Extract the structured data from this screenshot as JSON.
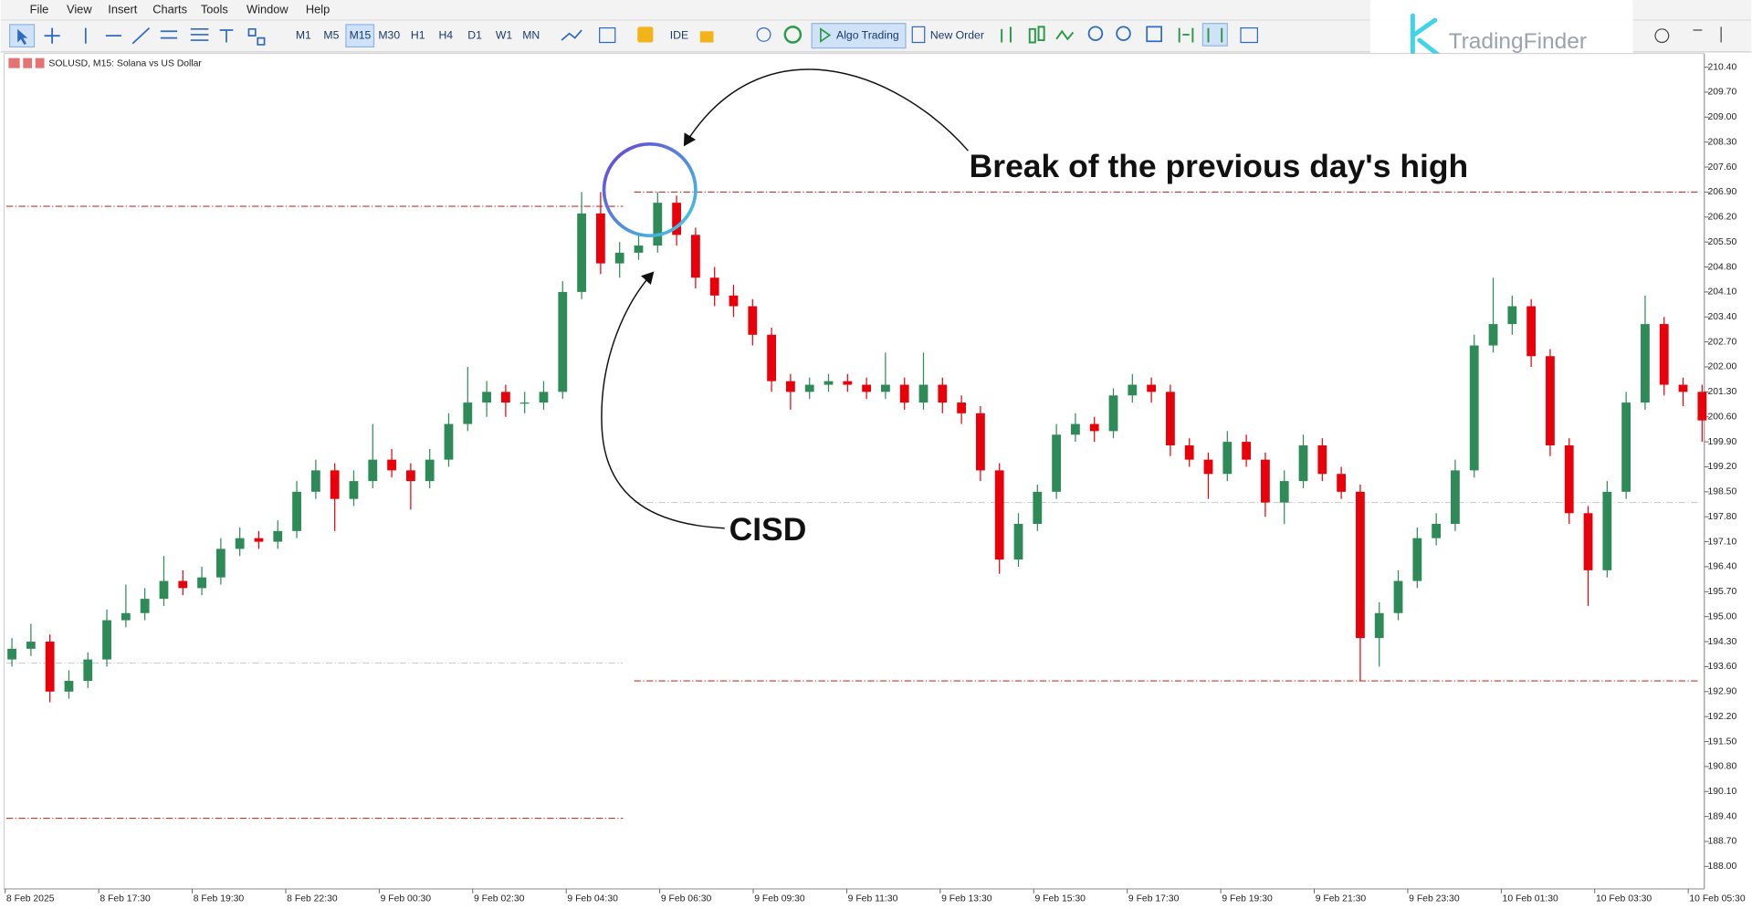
{
  "menu": [
    "File",
    "View",
    "Insert",
    "Charts",
    "Tools",
    "Window",
    "Help"
  ],
  "toolbar": {
    "timeframes": [
      "M1",
      "M5",
      "M15",
      "M30",
      "H1",
      "H4",
      "D1",
      "W1",
      "MN"
    ],
    "active_timeframe": 2,
    "ide": "IDE",
    "algo_trading": "Algo Trading",
    "new_order": "New Order"
  },
  "logo": "TradingFinder",
  "annotations": [
    "Break of the previous day's high",
    "CISD"
  ],
  "chart_data": {
    "type": "candlestick",
    "title": "SOLUSD, M15:  Solana vs US Dollar",
    "up_color": "#2e8b57",
    "down_color": "#e8000b",
    "ylim": [
      187.37,
      210.78
    ],
    "yticks": [
      {
        "value": 210.4,
        "label": "210.40"
      },
      {
        "value": 209.7,
        "label": "209.70"
      },
      {
        "value": 209,
        "label": "209.00"
      },
      {
        "value": 208.3,
        "label": "208.30"
      },
      {
        "value": 207.6,
        "label": "207.60"
      },
      {
        "value": 206.9,
        "label": "206.90"
      },
      {
        "value": 206.2,
        "label": "206.20"
      },
      {
        "value": 205.5,
        "label": "205.50"
      },
      {
        "value": 204.8,
        "label": "204.80"
      },
      {
        "value": 204.1,
        "label": "204.10"
      },
      {
        "value": 203.4,
        "label": "203.40"
      },
      {
        "value": 202.7,
        "label": "202.70"
      },
      {
        "value": 202,
        "label": "202.00"
      },
      {
        "value": 201.3,
        "label": "201.30"
      },
      {
        "value": 200.6,
        "label": "200.60"
      },
      {
        "value": 199.9,
        "label": "199.90"
      },
      {
        "value": 199.2,
        "label": "199.20"
      },
      {
        "value": 198.5,
        "label": "198.50"
      },
      {
        "value": 197.8,
        "label": "197.80"
      },
      {
        "value": 197.1,
        "label": "197.10"
      },
      {
        "value": 196.4,
        "label": "196.40"
      },
      {
        "value": 195.7,
        "label": "195.70"
      },
      {
        "value": 195,
        "label": "195.00"
      },
      {
        "value": 194.3,
        "label": "194.30"
      },
      {
        "value": 193.6,
        "label": "193.60"
      },
      {
        "value": 192.9,
        "label": "192.90"
      },
      {
        "value": 192.2,
        "label": "192.20"
      },
      {
        "value": 191.5,
        "label": "191.50"
      },
      {
        "value": 190.8,
        "label": "190.80"
      },
      {
        "value": 190.1,
        "label": "190.10"
      },
      {
        "value": 189.4,
        "label": "189.40"
      },
      {
        "value": 188.7,
        "label": "188.70"
      },
      {
        "value": 188,
        "label": "188.00"
      }
    ],
    "x_labels": [
      "8 Feb 2025",
      "8 Feb 17:30",
      "8 Feb 19:30",
      "8 Feb 22:30",
      "9 Feb 00:30",
      "9 Feb 02:30",
      "9 Feb 04:30",
      "9 Feb 06:30",
      "9 Feb 09:30",
      "9 Feb 11:30",
      "9 Feb 13:30",
      "9 Feb 15:30",
      "9 Feb 17:30",
      "9 Feb 19:30",
      "9 Feb 21:30",
      "9 Feb 23:30",
      "10 Feb 01:30",
      "10 Feb 03:30",
      "10 Feb 05:30"
    ],
    "levels": [
      {
        "value": 206.5,
        "side": "left",
        "color": "#c0392b"
      },
      {
        "value": 206.9,
        "side": "right",
        "color": "#c0392b"
      },
      {
        "value": 193.2,
        "side": "right",
        "color": "#c0392b"
      },
      {
        "value": 189.35,
        "side": "left",
        "color": "#c0392b"
      },
      {
        "value": 193.7,
        "side": "left",
        "color": "#cccccc"
      },
      {
        "value": 198.2,
        "side": "right",
        "color": "#cccccc"
      }
    ],
    "ohlc": [
      [
        193.8,
        194.4,
        193.6,
        194.1
      ],
      [
        194.1,
        194.8,
        193.9,
        194.3
      ],
      [
        194.3,
        194.5,
        192.6,
        192.9
      ],
      [
        192.9,
        193.5,
        192.7,
        193.2
      ],
      [
        193.2,
        194.0,
        193.0,
        193.8
      ],
      [
        193.8,
        195.2,
        193.6,
        194.9
      ],
      [
        194.9,
        195.9,
        194.7,
        195.1
      ],
      [
        195.1,
        195.8,
        194.9,
        195.5
      ],
      [
        195.5,
        196.7,
        195.3,
        196.0
      ],
      [
        196.0,
        196.3,
        195.6,
        195.8
      ],
      [
        195.8,
        196.4,
        195.6,
        196.1
      ],
      [
        196.1,
        197.2,
        195.9,
        196.9
      ],
      [
        196.9,
        197.5,
        196.7,
        197.2
      ],
      [
        197.2,
        197.4,
        196.9,
        197.1
      ],
      [
        197.1,
        197.7,
        196.9,
        197.4
      ],
      [
        197.4,
        198.8,
        197.2,
        198.5
      ],
      [
        198.5,
        199.4,
        198.3,
        199.1
      ],
      [
        199.1,
        199.3,
        197.4,
        198.3
      ],
      [
        198.3,
        199.1,
        198.1,
        198.8
      ],
      [
        198.8,
        200.4,
        198.6,
        199.4
      ],
      [
        199.4,
        199.7,
        198.9,
        199.1
      ],
      [
        199.1,
        199.3,
        198.0,
        198.8
      ],
      [
        198.8,
        199.7,
        198.6,
        199.4
      ],
      [
        199.4,
        200.7,
        199.2,
        200.4
      ],
      [
        200.4,
        202.0,
        200.2,
        201.0
      ],
      [
        201.0,
        201.6,
        200.6,
        201.3
      ],
      [
        201.3,
        201.5,
        200.6,
        201.0
      ],
      [
        201.0,
        201.3,
        200.7,
        201.0
      ],
      [
        201.0,
        201.6,
        200.8,
        201.3
      ],
      [
        201.3,
        204.4,
        201.1,
        204.1
      ],
      [
        204.1,
        206.9,
        203.9,
        206.3
      ],
      [
        206.3,
        206.9,
        204.6,
        204.9
      ],
      [
        204.9,
        205.5,
        204.5,
        205.2
      ],
      [
        205.2,
        205.7,
        205.0,
        205.4
      ],
      [
        205.4,
        206.9,
        205.2,
        206.6
      ],
      [
        206.6,
        206.8,
        205.4,
        205.7
      ],
      [
        205.7,
        205.9,
        204.2,
        204.5
      ],
      [
        204.5,
        204.8,
        203.7,
        204.0
      ],
      [
        204.0,
        204.3,
        203.4,
        203.7
      ],
      [
        203.7,
        203.9,
        202.6,
        202.9
      ],
      [
        202.9,
        203.1,
        201.3,
        201.6
      ],
      [
        201.6,
        201.8,
        200.8,
        201.3
      ],
      [
        201.3,
        201.7,
        201.1,
        201.5
      ],
      [
        201.5,
        201.8,
        201.3,
        201.6
      ],
      [
        201.6,
        201.8,
        201.3,
        201.5
      ],
      [
        201.5,
        201.7,
        201.1,
        201.3
      ],
      [
        201.3,
        202.4,
        201.1,
        201.5
      ],
      [
        201.5,
        201.7,
        200.8,
        201.0
      ],
      [
        201.0,
        202.4,
        200.8,
        201.5
      ],
      [
        201.5,
        201.7,
        200.7,
        201.0
      ],
      [
        201.0,
        201.2,
        200.4,
        200.7
      ],
      [
        200.7,
        200.9,
        198.8,
        199.1
      ],
      [
        199.1,
        199.3,
        196.2,
        196.6
      ],
      [
        196.6,
        197.9,
        196.4,
        197.6
      ],
      [
        197.6,
        198.7,
        197.4,
        198.5
      ],
      [
        198.5,
        200.4,
        198.3,
        200.1
      ],
      [
        200.1,
        200.7,
        199.9,
        200.4
      ],
      [
        200.4,
        200.6,
        199.9,
        200.2
      ],
      [
        200.2,
        201.4,
        200.0,
        201.2
      ],
      [
        201.2,
        201.8,
        201.0,
        201.5
      ],
      [
        201.5,
        201.7,
        201.0,
        201.3
      ],
      [
        201.3,
        201.5,
        199.5,
        199.8
      ],
      [
        199.8,
        200.0,
        199.2,
        199.4
      ],
      [
        199.4,
        199.6,
        198.3,
        199.0
      ],
      [
        199.0,
        200.2,
        198.8,
        199.9
      ],
      [
        199.9,
        200.1,
        199.2,
        199.4
      ],
      [
        199.4,
        199.6,
        197.8,
        198.2
      ],
      [
        198.2,
        199.1,
        197.6,
        198.8
      ],
      [
        198.8,
        200.1,
        198.6,
        199.8
      ],
      [
        199.8,
        200.0,
        198.8,
        199.0
      ],
      [
        199.0,
        199.2,
        198.3,
        198.5
      ],
      [
        198.5,
        198.7,
        193.2,
        194.4
      ],
      [
        194.4,
        195.4,
        193.6,
        195.1
      ],
      [
        195.1,
        196.3,
        194.9,
        196.0
      ],
      [
        196.0,
        197.5,
        195.8,
        197.2
      ],
      [
        197.2,
        197.9,
        197.0,
        197.6
      ],
      [
        197.6,
        199.4,
        197.4,
        199.1
      ],
      [
        199.1,
        202.9,
        198.9,
        202.6
      ],
      [
        202.6,
        204.5,
        202.4,
        203.2
      ],
      [
        203.2,
        204.0,
        202.9,
        203.7
      ],
      [
        203.7,
        203.9,
        202.0,
        202.3
      ],
      [
        202.3,
        202.5,
        199.5,
        199.8
      ],
      [
        199.8,
        200.0,
        197.6,
        197.9
      ],
      [
        197.9,
        198.1,
        195.3,
        196.3
      ],
      [
        196.3,
        198.8,
        196.1,
        198.5
      ],
      [
        198.5,
        201.3,
        198.3,
        201.0
      ],
      [
        201.0,
        204.0,
        200.8,
        203.2
      ],
      [
        203.2,
        203.4,
        201.2,
        201.5
      ],
      [
        201.5,
        201.7,
        200.9,
        201.3
      ],
      [
        201.3,
        201.5,
        199.9,
        200.5
      ]
    ]
  }
}
